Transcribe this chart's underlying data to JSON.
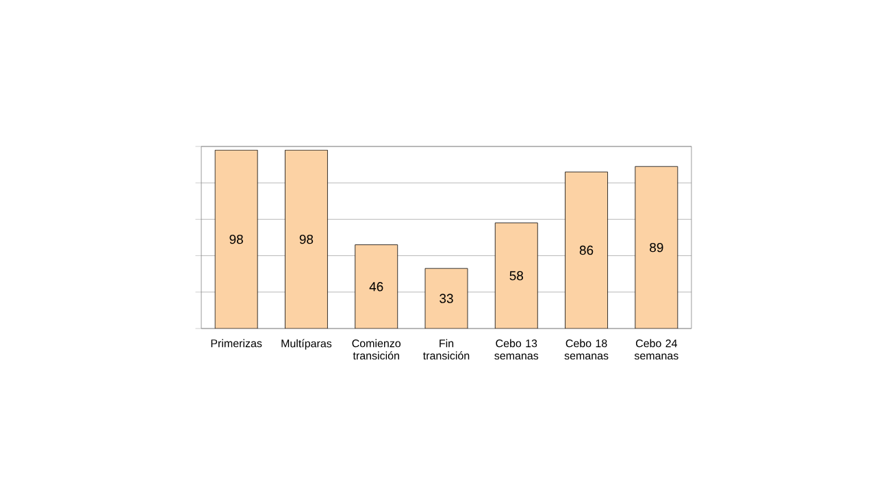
{
  "chart_data": {
    "type": "bar",
    "categories": [
      "Primerizas",
      "Multíparas",
      "Comienzo transición",
      "Fin transición",
      "Cebo 13 semanas",
      "Cebo 18 semanas",
      "Cebo 24 semanas"
    ],
    "values": [
      98,
      98,
      46,
      33,
      58,
      86,
      89
    ],
    "color": "#fcd2a4",
    "ylim": [
      0,
      100
    ],
    "yticks": [
      {
        "value": 0,
        "label": null
      },
      {
        "value": 20,
        "label": null
      },
      {
        "value": 40,
        "label": null
      },
      {
        "value": 60,
        "label": null
      },
      {
        "value": 80,
        "label": null
      },
      {
        "value": 100,
        "label": null
      }
    ],
    "grid": "y",
    "tick_labels": "x",
    "data_labels": true
  }
}
